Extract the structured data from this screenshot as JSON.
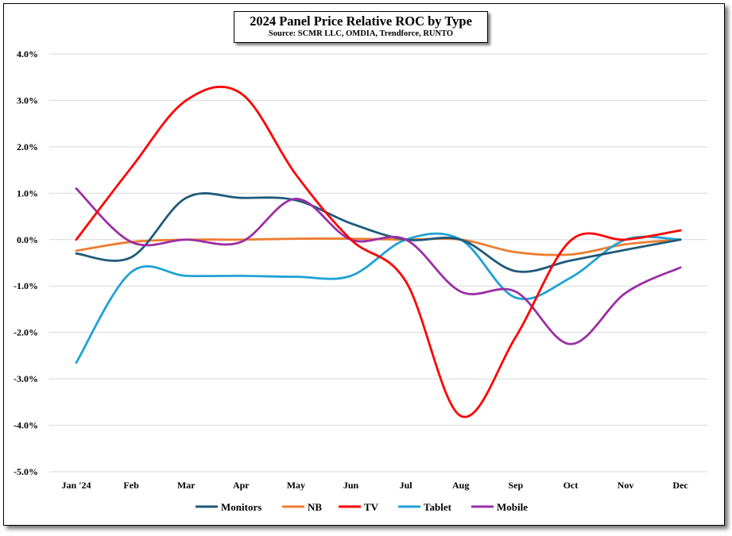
{
  "chart_data": {
    "type": "line",
    "title": "2024 Panel Price Relative ROC by Type",
    "subtitle": "Source: SCMR LLC, OMDIA, Trendforce, RUNTO",
    "categories": [
      "Jan '24",
      "Feb",
      "Mar",
      "Apr",
      "May",
      "Jun",
      "Jul",
      "Aug",
      "Sep",
      "Oct",
      "Nov",
      "Dec"
    ],
    "y_ticks": [
      "4.0%",
      "3.0%",
      "2.0%",
      "1.0%",
      "0.0%",
      "-1.0%",
      "-2.0%",
      "-3.0%",
      "-4.0%",
      "-5.0%"
    ],
    "ylim": [
      -5.0,
      4.0
    ],
    "y_unit": "%",
    "grid": true,
    "legend_position": "bottom",
    "series": [
      {
        "name": "Monitors",
        "color": "#1f5a7a",
        "values": [
          -0.3,
          -0.38,
          0.9,
          0.9,
          0.85,
          0.35,
          0.0,
          0.0,
          -0.68,
          -0.45,
          -0.22,
          0.0
        ]
      },
      {
        "name": "NB",
        "color": "#ed7d31",
        "values": [
          -0.24,
          -0.05,
          0.0,
          0.0,
          0.02,
          0.02,
          0.0,
          0.0,
          -0.27,
          -0.32,
          -0.1,
          0.0
        ]
      },
      {
        "name": "TV",
        "color": "#ff0000",
        "values": [
          0.0,
          1.55,
          3.0,
          3.15,
          1.4,
          0.0,
          -0.9,
          -3.8,
          -2.1,
          -0.02,
          0.0,
          0.2
        ]
      },
      {
        "name": "Tablet",
        "color": "#1fa2d6",
        "values": [
          -2.65,
          -0.7,
          -0.78,
          -0.78,
          -0.8,
          -0.78,
          0.0,
          0.0,
          -1.25,
          -0.82,
          0.0,
          0.0
        ]
      },
      {
        "name": "Mobile",
        "color": "#9b2fa4",
        "values": [
          1.1,
          -0.05,
          0.0,
          -0.05,
          0.88,
          0.0,
          0.0,
          -1.12,
          -1.12,
          -2.25,
          -1.15,
          -0.6
        ]
      }
    ]
  }
}
